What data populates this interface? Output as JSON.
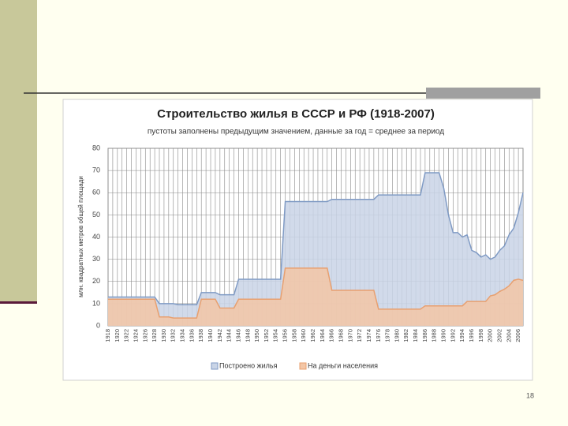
{
  "slide_number": "18",
  "chart_data": {
    "type": "area",
    "title": "Строительство жилья в СССР и РФ (1918-2007)",
    "subtitle": "пустоты заполнены предыдущим значением, данные за год = среднее за период",
    "ylabel": "млн. квадратных метров общей площади",
    "x": [
      1918,
      1919,
      1920,
      1921,
      1922,
      1923,
      1924,
      1925,
      1926,
      1927,
      1928,
      1929,
      1930,
      1931,
      1932,
      1933,
      1934,
      1935,
      1936,
      1937,
      1938,
      1939,
      1940,
      1941,
      1942,
      1943,
      1944,
      1945,
      1946,
      1947,
      1948,
      1949,
      1950,
      1951,
      1952,
      1953,
      1954,
      1955,
      1956,
      1957,
      1958,
      1959,
      1960,
      1961,
      1962,
      1963,
      1964,
      1965,
      1966,
      1967,
      1968,
      1969,
      1970,
      1971,
      1972,
      1973,
      1974,
      1975,
      1976,
      1977,
      1978,
      1979,
      1980,
      1981,
      1982,
      1983,
      1984,
      1985,
      1986,
      1987,
      1988,
      1989,
      1990,
      1991,
      1992,
      1993,
      1994,
      1995,
      1996,
      1997,
      1998,
      1999,
      2000,
      2001,
      2002,
      2003,
      2004,
      2005,
      2006,
      2007
    ],
    "series": [
      {
        "name": "Построено жилья",
        "color": "#7f9ac4",
        "fill": "#c9d4e6",
        "values": [
          13,
          13,
          13,
          13,
          13,
          13,
          13,
          13,
          13,
          13,
          13,
          10,
          10,
          10,
          10,
          9.5,
          9.5,
          9.5,
          9.5,
          9.5,
          15,
          15,
          15,
          15,
          14,
          14,
          14,
          14,
          21,
          21,
          21,
          21,
          21,
          21,
          21,
          21,
          21,
          21,
          56,
          56,
          56,
          56,
          56,
          56,
          56,
          56,
          56,
          56,
          57,
          57,
          57,
          57,
          57,
          57,
          57,
          57,
          57,
          57,
          59,
          59,
          59,
          59,
          59,
          59,
          59,
          59,
          59,
          59,
          69,
          69,
          69,
          69,
          62,
          50,
          42,
          42,
          40,
          41,
          34,
          33,
          31,
          32,
          30,
          31,
          34,
          36,
          41,
          44,
          51,
          60
        ]
      },
      {
        "name": "На деньги населения",
        "color": "#e8a070",
        "fill": "#f3c6a6",
        "values": [
          12,
          12,
          12,
          12,
          12,
          12,
          12,
          12,
          12,
          12,
          12,
          4,
          4,
          4,
          3.5,
          3.5,
          3.5,
          3.5,
          3.5,
          3.5,
          12,
          12,
          12,
          12,
          8,
          8,
          8,
          8,
          12,
          12,
          12,
          12,
          12,
          12,
          12,
          12,
          12,
          12,
          26,
          26,
          26,
          26,
          26,
          26,
          26,
          26,
          26,
          26,
          16,
          16,
          16,
          16,
          16,
          16,
          16,
          16,
          16,
          16,
          7.5,
          7.5,
          7.5,
          7.5,
          7.5,
          7.5,
          7.5,
          7.5,
          7.5,
          7.5,
          9,
          9,
          9,
          9,
          9,
          9,
          9,
          9,
          9,
          11,
          11,
          11,
          11,
          11,
          13.5,
          14,
          15.5,
          16.5,
          18,
          20.5,
          21,
          20.5
        ]
      }
    ],
    "xlim": [
      1918,
      2007
    ],
    "xticks": [
      1918,
      1920,
      1922,
      1924,
      1926,
      1928,
      1930,
      1932,
      1934,
      1936,
      1938,
      1940,
      1942,
      1944,
      1946,
      1948,
      1950,
      1952,
      1954,
      1956,
      1958,
      1960,
      1962,
      1964,
      1966,
      1968,
      1970,
      1972,
      1974,
      1976,
      1978,
      1980,
      1982,
      1984,
      1986,
      1988,
      1990,
      1992,
      1994,
      1996,
      1998,
      2000,
      2002,
      2004,
      2006
    ],
    "ylim": [
      0,
      80
    ],
    "yticks": [
      0,
      10,
      20,
      30,
      40,
      50,
      60,
      70,
      80
    ],
    "grid": true
  }
}
